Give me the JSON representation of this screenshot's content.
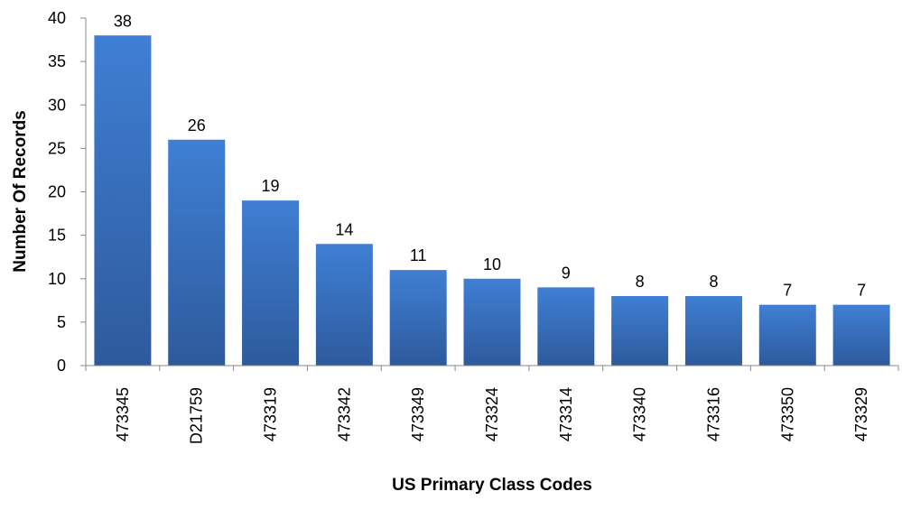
{
  "chart_data": {
    "type": "bar",
    "title": "",
    "xlabel": "US Primary Class Codes",
    "ylabel": "Number Of Records",
    "categories": [
      "473345",
      "D21759",
      "473319",
      "473342",
      "473349",
      "473324",
      "473314",
      "473340",
      "473316",
      "473350",
      "473329"
    ],
    "values": [
      38,
      26,
      19,
      14,
      11,
      10,
      9,
      8,
      8,
      7,
      7
    ],
    "ylim": [
      0,
      40
    ],
    "yticks": [
      0,
      5,
      10,
      15,
      20,
      25,
      30,
      35,
      40
    ],
    "grid": false,
    "legend": "none",
    "bar_color_top": "#3f7fd4",
    "bar_color_bottom": "#2e5a9c",
    "data_labels": true
  }
}
